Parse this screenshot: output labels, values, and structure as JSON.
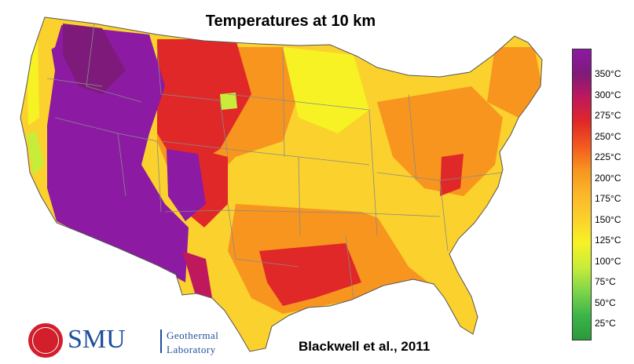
{
  "title": "Temperatures at 10 km",
  "credit": "Blackwell et al., 2011",
  "logo": {
    "brand": "SMU",
    "line1": "Geothermal",
    "line2": "Laboratory",
    "brand_color": "#1d4f9c",
    "seal_color": "#d21f2b"
  },
  "legend": {
    "unit": "°C",
    "labels": [
      "350°C",
      "300°C",
      "275°C",
      "250°C",
      "225°C",
      "200°C",
      "175°C",
      "150°C",
      "125°C",
      "100°C",
      "75°C",
      "50°C",
      "25°C"
    ],
    "gradient_colors": [
      "#8c1aa3",
      "#7e1b7a",
      "#c0185c",
      "#e02828",
      "#f25a1e",
      "#f7951f",
      "#fbb729",
      "#fbd12d",
      "#f7f224",
      "#c8ec3a",
      "#7ed54a",
      "#3db44a",
      "#2a9a3a"
    ]
  },
  "map": {
    "land_base_color": "#fbd12d",
    "state_line_color": "#8a8a8a"
  }
}
